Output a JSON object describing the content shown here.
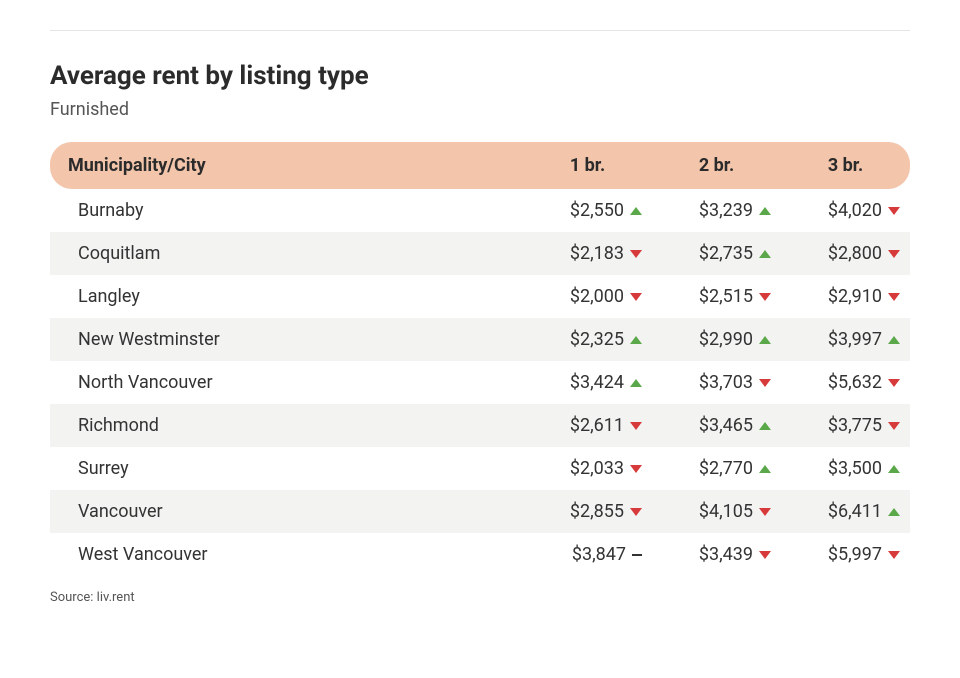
{
  "title": "Average rent by listing type",
  "subtitle": "Furnished",
  "source_label": "Source: liv.rent",
  "table": {
    "type": "table",
    "header_bg": "#f3c5ab",
    "header_text": "#2b2b2b",
    "row_bg_even": "#f3f3f2",
    "row_bg_odd": "#ffffff",
    "up_color": "#5ba84a",
    "down_color": "#d73a3a",
    "flat_color": "#333333",
    "title_fontsize": 26,
    "body_fontsize": 18,
    "columns": [
      "Municipality/City",
      "1 br.",
      "2 br.",
      "3 br."
    ],
    "rows": [
      {
        "city": "Burnaby",
        "b1": {
          "v": "$2,550",
          "d": "up"
        },
        "b2": {
          "v": "$3,239",
          "d": "up"
        },
        "b3": {
          "v": "$4,020",
          "d": "down"
        }
      },
      {
        "city": "Coquitlam",
        "b1": {
          "v": "$2,183",
          "d": "down"
        },
        "b2": {
          "v": "$2,735",
          "d": "up"
        },
        "b3": {
          "v": "$2,800",
          "d": "down"
        }
      },
      {
        "city": "Langley",
        "b1": {
          "v": "$2,000",
          "d": "down"
        },
        "b2": {
          "v": "$2,515",
          "d": "down"
        },
        "b3": {
          "v": "$2,910",
          "d": "down"
        }
      },
      {
        "city": "New Westminster",
        "b1": {
          "v": "$2,325",
          "d": "up"
        },
        "b2": {
          "v": "$2,990",
          "d": "up"
        },
        "b3": {
          "v": "$3,997",
          "d": "up"
        }
      },
      {
        "city": "North Vancouver",
        "b1": {
          "v": "$3,424",
          "d": "up"
        },
        "b2": {
          "v": "$3,703",
          "d": "down"
        },
        "b3": {
          "v": "$5,632",
          "d": "down"
        }
      },
      {
        "city": "Richmond",
        "b1": {
          "v": "$2,611",
          "d": "down"
        },
        "b2": {
          "v": "$3,465",
          "d": "up"
        },
        "b3": {
          "v": "$3,775",
          "d": "down"
        }
      },
      {
        "city": "Surrey",
        "b1": {
          "v": "$2,033",
          "d": "down"
        },
        "b2": {
          "v": "$2,770",
          "d": "up"
        },
        "b3": {
          "v": "$3,500",
          "d": "up"
        }
      },
      {
        "city": "Vancouver",
        "b1": {
          "v": "$2,855",
          "d": "down"
        },
        "b2": {
          "v": "$4,105",
          "d": "down"
        },
        "b3": {
          "v": "$6,411",
          "d": "up"
        }
      },
      {
        "city": "West Vancouver",
        "b1": {
          "v": "$3,847",
          "d": "flat"
        },
        "b2": {
          "v": "$3,439",
          "d": "down"
        },
        "b3": {
          "v": "$5,997",
          "d": "down"
        }
      }
    ]
  }
}
